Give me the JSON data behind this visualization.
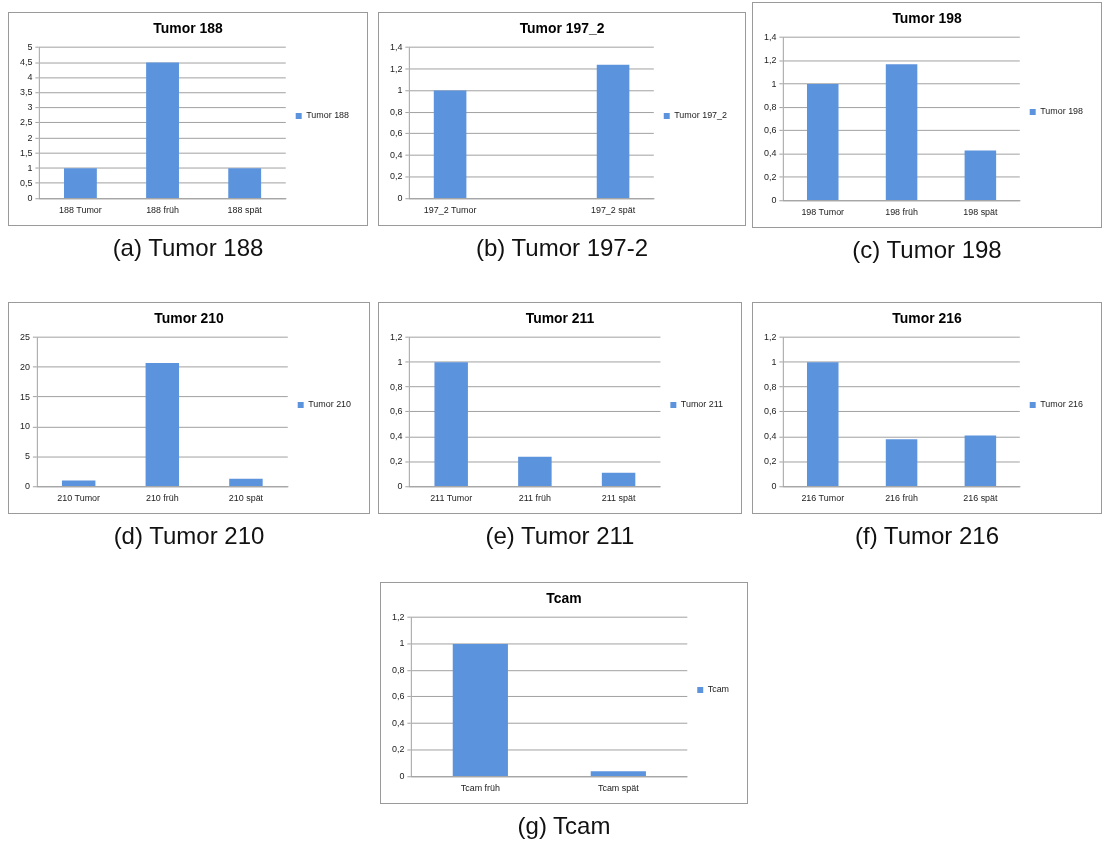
{
  "chart_data": [
    {
      "type": "bar",
      "title": "Tumor 188",
      "categories": [
        "188 Tumor",
        "188 früh",
        "188 spät"
      ],
      "series": [
        {
          "name": "Tumor 188",
          "color": "#5b93dc",
          "values": [
            1,
            4.5,
            1
          ]
        }
      ],
      "ylim": [
        0,
        5
      ],
      "yticks": [
        0,
        {
          "value": 0.5,
          "label": "0,5"
        },
        1,
        {
          "value": 1.5,
          "label": "1,5"
        },
        2,
        {
          "value": 2.5,
          "label": "2,5"
        },
        3,
        {
          "value": 3.5,
          "label": "3,5"
        },
        4,
        {
          "value": 4.5,
          "label": "4,5"
        },
        5
      ],
      "grid": "y",
      "legend": "right",
      "annotations": [
        "(a) Tumor 188"
      ]
    },
    {
      "type": "bar",
      "title": "Tumor 197_2",
      "categories": [
        "197_2 Tumor",
        null,
        "197_2 spät"
      ],
      "series": [
        {
          "name": "Tumor 197_2",
          "color": "#5b93dc",
          "values": [
            1,
            null,
            1.24
          ]
        }
      ],
      "ylim": [
        0,
        1.4
      ],
      "yticks": [
        0,
        {
          "value": 0.2,
          "label": "0,2"
        },
        {
          "value": 0.4,
          "label": "0,4"
        },
        {
          "value": 0.6,
          "label": "0,6"
        },
        {
          "value": 0.8,
          "label": "0,8"
        },
        1,
        {
          "value": 1.2,
          "label": "1,2"
        },
        {
          "value": 1.4,
          "label": "1,4"
        }
      ],
      "grid": "y",
      "legend": "right",
      "annotations": [
        "(b) Tumor 197-2"
      ]
    },
    {
      "type": "bar",
      "title": "Tumor 198",
      "categories": [
        "198 Tumor",
        "198 früh",
        "198 spät"
      ],
      "series": [
        {
          "name": "Tumor 198",
          "color": "#5b93dc",
          "values": [
            1,
            1.17,
            0.43
          ]
        }
      ],
      "ylim": [
        0,
        1.4
      ],
      "yticks": [
        0,
        {
          "value": 0.2,
          "label": "0,2"
        },
        {
          "value": 0.4,
          "label": "0,4"
        },
        {
          "value": 0.6,
          "label": "0,6"
        },
        {
          "value": 0.8,
          "label": "0,8"
        },
        1,
        {
          "value": 1.2,
          "label": "1,2"
        },
        {
          "value": 1.4,
          "label": "1,4"
        }
      ],
      "grid": "y",
      "legend": "right",
      "annotations": [
        "(c) Tumor 198"
      ]
    },
    {
      "type": "bar",
      "title": "Tumor 210",
      "categories": [
        "210 Tumor",
        "210 früh",
        "210 spät"
      ],
      "series": [
        {
          "name": "Tumor 210",
          "color": "#5b93dc",
          "values": [
            1,
            20.7,
            1.3
          ]
        }
      ],
      "ylim": [
        0,
        25
      ],
      "yticks": [
        0,
        5,
        10,
        15,
        20,
        25
      ],
      "grid": "y",
      "legend": "right",
      "annotations": [
        "(d) Tumor 210"
      ]
    },
    {
      "type": "bar",
      "title": "Tumor 211",
      "categories": [
        "211 Tumor",
        "211 früh",
        "211 spät"
      ],
      "series": [
        {
          "name": "Tumor 211",
          "color": "#5b93dc",
          "values": [
            1,
            0.24,
            0.11
          ]
        }
      ],
      "ylim": [
        0,
        1.2
      ],
      "yticks": [
        0,
        {
          "value": 0.2,
          "label": "0,2"
        },
        {
          "value": 0.4,
          "label": "0,4"
        },
        {
          "value": 0.6,
          "label": "0,6"
        },
        {
          "value": 0.8,
          "label": "0,8"
        },
        1,
        {
          "value": 1.2,
          "label": "1,2"
        }
      ],
      "grid": "y",
      "legend": "right",
      "annotations": [
        "(e) Tumor 211"
      ]
    },
    {
      "type": "bar",
      "title": "Tumor 216",
      "categories": [
        "216 Tumor",
        "216 früh",
        "216 spät"
      ],
      "series": [
        {
          "name": "Tumor 216",
          "color": "#5b93dc",
          "values": [
            1,
            0.38,
            0.41
          ]
        }
      ],
      "ylim": [
        0,
        1.2
      ],
      "yticks": [
        0,
        {
          "value": 0.2,
          "label": "0,2"
        },
        {
          "value": 0.4,
          "label": "0,4"
        },
        {
          "value": 0.6,
          "label": "0,6"
        },
        {
          "value": 0.8,
          "label": "0,8"
        },
        1,
        {
          "value": 1.2,
          "label": "1,2"
        }
      ],
      "grid": "y",
      "legend": "right",
      "annotations": [
        "(f) Tumor 216"
      ]
    },
    {
      "type": "bar",
      "title": "Tcam",
      "categories": [
        "Tcam früh",
        "Tcam spät"
      ],
      "series": [
        {
          "name": "Tcam",
          "color": "#5b93dc",
          "values": [
            1,
            0.04
          ]
        }
      ],
      "ylim": [
        0,
        1.2
      ],
      "yticks": [
        0,
        {
          "value": 0.2,
          "label": "0,2"
        },
        {
          "value": 0.4,
          "label": "0,4"
        },
        {
          "value": 0.6,
          "label": "0,6"
        },
        {
          "value": 0.8,
          "label": "0,8"
        },
        1,
        {
          "value": 1.2,
          "label": "1,2"
        }
      ],
      "grid": "y",
      "legend": "right",
      "annotations": [
        "(g) Tcam"
      ]
    }
  ]
}
